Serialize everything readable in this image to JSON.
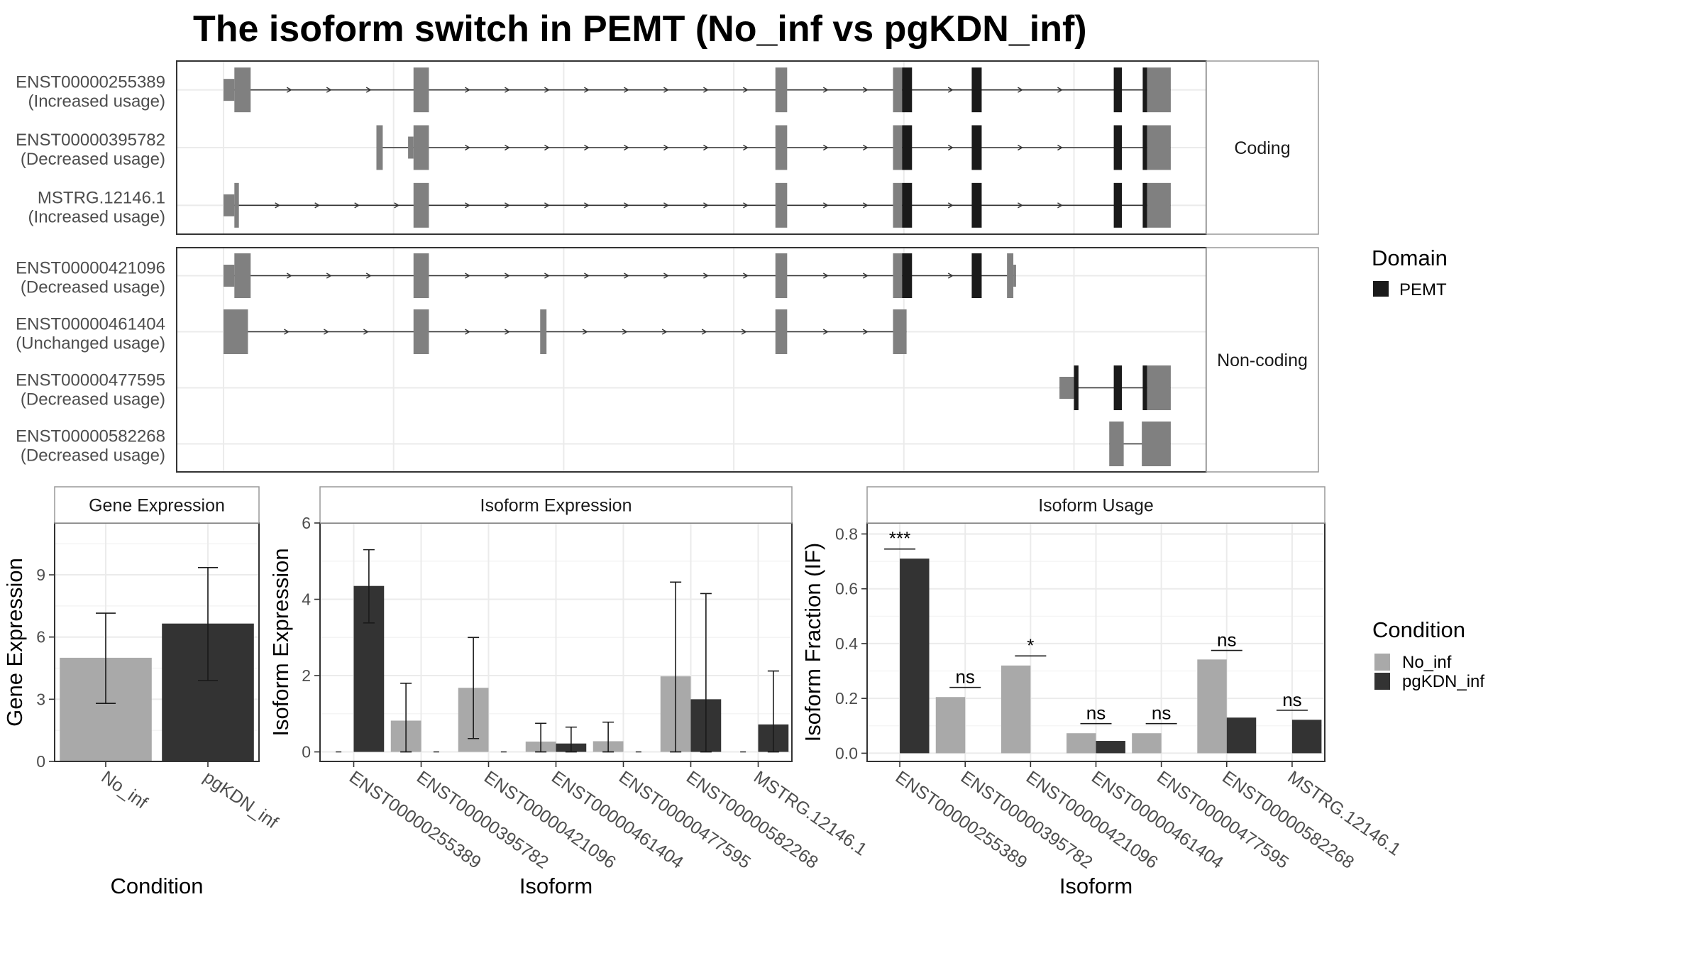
{
  "title": "The isoform switch in PEMT (No_inf vs pgKDN_inf)",
  "colors": {
    "no_inf": "#a9a9a9",
    "pgkdn_inf": "#333333",
    "utr": "#808080",
    "domain": "#1a1a1a",
    "panel_border": "#333333",
    "strip_border": "#999999",
    "grid": "#ebebeb"
  },
  "transcripts": {
    "groups": [
      {
        "label": "Coding",
        "rows": [
          {
            "id": "ENST00000255389",
            "status": "(Increased usage)",
            "exons": [
              [
                0,
                0.012,
                "thin"
              ],
              [
                0.012,
                0.03,
                "utr"
              ],
              [
                0.21,
                0.227,
                "utr"
              ],
              [
                0.61,
                0.623,
                "utr"
              ],
              [
                0.74,
                0.75,
                "utr"
              ],
              [
                0.75,
                0.761,
                "domain"
              ],
              [
                0.827,
                0.838,
                "domain"
              ],
              [
                0.984,
                0.993,
                "domain"
              ],
              [
                1.016,
                1.021,
                "domain"
              ],
              [
                1.021,
                1.047,
                "utr"
              ]
            ]
          },
          {
            "id": "ENST00000395782",
            "status": "(Decreased usage)",
            "exons": [
              [
                0.169,
                0.176,
                "utr"
              ],
              [
                0.204,
                0.21,
                "thin"
              ],
              [
                0.21,
                0.227,
                "utr"
              ],
              [
                0.61,
                0.623,
                "utr"
              ],
              [
                0.74,
                0.75,
                "utr"
              ],
              [
                0.75,
                0.761,
                "domain"
              ],
              [
                0.827,
                0.838,
                "domain"
              ],
              [
                0.984,
                0.993,
                "domain"
              ],
              [
                1.016,
                1.021,
                "domain"
              ],
              [
                1.021,
                1.047,
                "utr"
              ]
            ]
          },
          {
            "id": "MSTRG.12146.1",
            "status": "(Increased usage)",
            "exons": [
              [
                0,
                0.012,
                "thin"
              ],
              [
                0.012,
                0.017,
                "utr"
              ],
              [
                0.21,
                0.227,
                "utr"
              ],
              [
                0.61,
                0.623,
                "utr"
              ],
              [
                0.74,
                0.75,
                "utr"
              ],
              [
                0.75,
                0.761,
                "domain"
              ],
              [
                0.827,
                0.838,
                "domain"
              ],
              [
                0.984,
                0.993,
                "domain"
              ],
              [
                1.016,
                1.021,
                "domain"
              ],
              [
                1.021,
                1.047,
                "utr"
              ]
            ]
          }
        ]
      },
      {
        "label": "Non-coding",
        "rows": [
          {
            "id": "ENST00000421096",
            "status": "(Decreased usage)",
            "exons": [
              [
                0,
                0.012,
                "thin"
              ],
              [
                0.012,
                0.03,
                "utr"
              ],
              [
                0.21,
                0.227,
                "utr"
              ],
              [
                0.61,
                0.623,
                "utr"
              ],
              [
                0.74,
                0.75,
                "utr"
              ],
              [
                0.75,
                0.761,
                "domain"
              ],
              [
                0.827,
                0.838,
                "domain"
              ],
              [
                0.866,
                0.873,
                "utr"
              ],
              [
                0.873,
                0.876,
                "thin"
              ]
            ]
          },
          {
            "id": "ENST00000461404",
            "status": "(Unchanged usage)",
            "exons": [
              [
                0,
                0.027,
                "utr"
              ],
              [
                0.21,
                0.227,
                "utr"
              ],
              [
                0.35,
                0.357,
                "utr"
              ],
              [
                0.61,
                0.623,
                "utr"
              ],
              [
                0.74,
                0.755,
                "utr"
              ]
            ]
          },
          {
            "id": "ENST00000477595",
            "status": "(Decreased usage)",
            "exons": [
              [
                0.924,
                0.94,
                "thin"
              ],
              [
                0.94,
                0.945,
                "domain"
              ],
              [
                0.984,
                0.993,
                "domain"
              ],
              [
                1.016,
                1.021,
                "domain"
              ],
              [
                1.021,
                1.047,
                "utr"
              ]
            ]
          },
          {
            "id": "ENST00000582268",
            "status": "(Decreased usage)",
            "exons": [
              [
                0.979,
                0.995,
                "utr"
              ],
              [
                1.015,
                1.047,
                "utr"
              ]
            ]
          }
        ]
      }
    ],
    "legend_title": "Domain",
    "legend_items": [
      {
        "label": "PEMT",
        "color": "#1a1a1a"
      }
    ]
  },
  "condition_legend": {
    "title": "Condition",
    "items": [
      {
        "label": "No_inf",
        "color": "#a9a9a9"
      },
      {
        "label": "pgKDN_inf",
        "color": "#333333"
      }
    ]
  },
  "chart_data": [
    {
      "type": "bar",
      "strip": "Gene Expression",
      "xlabel": "Condition",
      "ylabel": "Gene Expression",
      "ylim": [
        0,
        11.5
      ],
      "yticks": [
        0,
        3,
        6,
        9
      ],
      "categories": [
        "No_inf",
        "pgKDN_inf"
      ],
      "series": [
        {
          "values": [
            5.0,
            6.65
          ],
          "err_low": [
            2.8,
            3.9
          ],
          "err_high": [
            7.15,
            9.35
          ]
        }
      ]
    },
    {
      "type": "bar",
      "strip": "Isoform Expression",
      "xlabel": "Isoform",
      "ylabel": "Isoform Expression",
      "ylim": [
        -0.25,
        6.0
      ],
      "yticks": [
        0,
        2,
        4,
        6
      ],
      "categories": [
        "ENST00000255389",
        "ENST00000395782",
        "ENST00000421096",
        "ENST00000461404",
        "ENST00000477595",
        "ENST00000582268",
        "MSTRG.12146.1"
      ],
      "series": [
        {
          "name": "No_inf",
          "values": [
            0,
            0.82,
            1.68,
            0.27,
            0.28,
            1.98,
            0
          ],
          "err_low": [
            0,
            0,
            0.35,
            0,
            0,
            0,
            0
          ],
          "err_high": [
            0,
            1.8,
            3.0,
            0.75,
            0.78,
            4.45,
            0
          ]
        },
        {
          "name": "pgKDN_inf",
          "values": [
            4.35,
            0,
            0,
            0.22,
            0,
            1.38,
            0.72
          ],
          "err_low": [
            3.38,
            0,
            0,
            0,
            0,
            0,
            0
          ],
          "err_high": [
            5.3,
            0,
            0,
            0.65,
            0,
            4.15,
            2.12
          ]
        }
      ]
    },
    {
      "type": "bar",
      "strip": "Isoform Usage",
      "xlabel": "Isoform",
      "ylabel": "Isoform Fraction (IF)",
      "ylim": [
        -0.03,
        0.84
      ],
      "yticks": [
        "0.0",
        "0.2",
        "0.4",
        "0.6",
        "0.8"
      ],
      "categories": [
        "ENST00000255389",
        "ENST00000395782",
        "ENST00000421096",
        "ENST00000461404",
        "ENST00000477595",
        "ENST00000582268",
        "MSTRG.12146.1"
      ],
      "series": [
        {
          "name": "No_inf",
          "values": [
            0,
            0.205,
            0.32,
            0.073,
            0.073,
            0.342,
            0
          ]
        },
        {
          "name": "pgKDN_inf",
          "values": [
            0.71,
            0,
            0,
            0.045,
            0,
            0.13,
            0.122
          ]
        }
      ],
      "significance": [
        {
          "label": "***",
          "y": 0.745
        },
        {
          "label": "ns",
          "y": 0.24
        },
        {
          "label": "*",
          "y": 0.355
        },
        {
          "label": "ns",
          "y": 0.108
        },
        {
          "label": "ns",
          "y": 0.108
        },
        {
          "label": "ns",
          "y": 0.375
        },
        {
          "label": "ns",
          "y": 0.157
        }
      ]
    }
  ]
}
